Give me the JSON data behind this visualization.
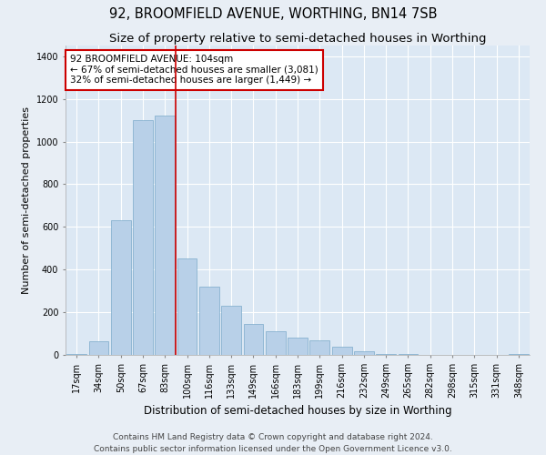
{
  "title": "92, BROOMFIELD AVENUE, WORTHING, BN14 7SB",
  "subtitle": "Size of property relative to semi-detached houses in Worthing",
  "xlabel": "Distribution of semi-detached houses by size in Worthing",
  "ylabel": "Number of semi-detached properties",
  "categories": [
    "17sqm",
    "34sqm",
    "50sqm",
    "67sqm",
    "83sqm",
    "100sqm",
    "116sqm",
    "133sqm",
    "149sqm",
    "166sqm",
    "183sqm",
    "199sqm",
    "216sqm",
    "232sqm",
    "249sqm",
    "265sqm",
    "282sqm",
    "298sqm",
    "315sqm",
    "331sqm",
    "348sqm"
  ],
  "values": [
    5,
    65,
    630,
    1100,
    1120,
    450,
    320,
    230,
    145,
    110,
    80,
    70,
    40,
    15,
    5,
    3,
    2,
    1,
    0,
    0,
    3
  ],
  "bar_color": "#b8d0e8",
  "bar_edge_color": "#7aaaca",
  "highlight_index": 5,
  "highlight_line_color": "#cc0000",
  "annotation_text": "92 BROOMFIELD AVENUE: 104sqm\n← 67% of semi-detached houses are smaller (3,081)\n32% of semi-detached houses are larger (1,449) →",
  "annotation_box_color": "#ffffff",
  "annotation_box_edge_color": "#cc0000",
  "ylim": [
    0,
    1450
  ],
  "yticks": [
    0,
    200,
    400,
    600,
    800,
    1000,
    1200,
    1400
  ],
  "footer": "Contains HM Land Registry data © Crown copyright and database right 2024.\nContains public sector information licensed under the Open Government Licence v3.0.",
  "bg_color": "#e8eef5",
  "plot_bg_color": "#dce8f4",
  "grid_color": "#ffffff",
  "title_fontsize": 10.5,
  "subtitle_fontsize": 9.5,
  "xlabel_fontsize": 8.5,
  "ylabel_fontsize": 8,
  "tick_fontsize": 7,
  "annotation_fontsize": 7.5,
  "footer_fontsize": 6.5
}
